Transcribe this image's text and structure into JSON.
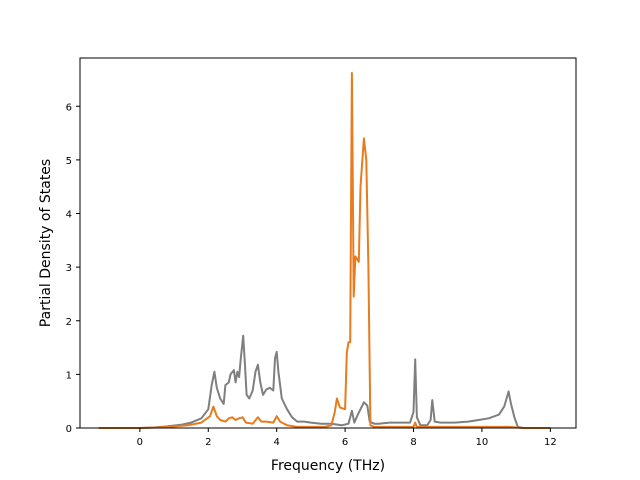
{
  "chart_data": {
    "type": "line",
    "xlabel": "Frequency (THz)",
    "ylabel": "Partial Density of States",
    "xlim": [
      -1.75,
      12.75
    ],
    "ylim": [
      0,
      6.9
    ],
    "x_ticks": [
      "0",
      "2",
      "4",
      "6",
      "8",
      "10",
      "12"
    ],
    "y_ticks": [
      "0",
      "1",
      "2",
      "3",
      "4",
      "5",
      "6"
    ],
    "grid": false,
    "legend": "none",
    "series": [
      {
        "color": "#7f7f7f",
        "points": [
          [
            -1.2,
            0
          ],
          [
            0,
            0
          ],
          [
            0.4,
            0.01
          ],
          [
            0.8,
            0.03
          ],
          [
            1.2,
            0.06
          ],
          [
            1.5,
            0.1
          ],
          [
            1.8,
            0.18
          ],
          [
            2.0,
            0.35
          ],
          [
            2.1,
            0.8
          ],
          [
            2.18,
            1.05
          ],
          [
            2.25,
            0.75
          ],
          [
            2.35,
            0.55
          ],
          [
            2.45,
            0.45
          ],
          [
            2.5,
            0.8
          ],
          [
            2.6,
            0.85
          ],
          [
            2.65,
            1.0
          ],
          [
            2.75,
            1.08
          ],
          [
            2.8,
            0.85
          ],
          [
            2.85,
            1.05
          ],
          [
            2.9,
            0.95
          ],
          [
            2.95,
            1.3
          ],
          [
            3.02,
            1.72
          ],
          [
            3.07,
            1.2
          ],
          [
            3.12,
            0.62
          ],
          [
            3.2,
            0.55
          ],
          [
            3.3,
            0.7
          ],
          [
            3.38,
            1.05
          ],
          [
            3.45,
            1.18
          ],
          [
            3.52,
            0.85
          ],
          [
            3.6,
            0.62
          ],
          [
            3.7,
            0.72
          ],
          [
            3.8,
            0.75
          ],
          [
            3.9,
            0.7
          ],
          [
            3.95,
            1.3
          ],
          [
            4.0,
            1.42
          ],
          [
            4.05,
            1.05
          ],
          [
            4.15,
            0.55
          ],
          [
            4.3,
            0.35
          ],
          [
            4.45,
            0.2
          ],
          [
            4.6,
            0.12
          ],
          [
            4.8,
            0.12
          ],
          [
            5.0,
            0.1
          ],
          [
            5.3,
            0.08
          ],
          [
            5.6,
            0.08
          ],
          [
            5.9,
            0.05
          ],
          [
            6.1,
            0.08
          ],
          [
            6.2,
            0.32
          ],
          [
            6.27,
            0.1
          ],
          [
            6.35,
            0.22
          ],
          [
            6.45,
            0.35
          ],
          [
            6.55,
            0.48
          ],
          [
            6.65,
            0.42
          ],
          [
            6.72,
            0.12
          ],
          [
            6.85,
            0.08
          ],
          [
            7.0,
            0.08
          ],
          [
            7.3,
            0.1
          ],
          [
            7.6,
            0.1
          ],
          [
            7.9,
            0.1
          ],
          [
            8.0,
            0.3
          ],
          [
            8.05,
            1.28
          ],
          [
            8.1,
            0.2
          ],
          [
            8.2,
            0.05
          ],
          [
            8.4,
            0.05
          ],
          [
            8.5,
            0.15
          ],
          [
            8.55,
            0.52
          ],
          [
            8.62,
            0.12
          ],
          [
            8.8,
            0.1
          ],
          [
            9.2,
            0.1
          ],
          [
            9.6,
            0.12
          ],
          [
            9.9,
            0.15
          ],
          [
            10.2,
            0.18
          ],
          [
            10.5,
            0.25
          ],
          [
            10.65,
            0.4
          ],
          [
            10.78,
            0.68
          ],
          [
            10.85,
            0.45
          ],
          [
            10.95,
            0.2
          ],
          [
            11.05,
            0.02
          ],
          [
            11.2,
            0
          ],
          [
            12.0,
            0
          ]
        ]
      },
      {
        "color": "#e87b1e",
        "points": [
          [
            -1.2,
            0
          ],
          [
            0,
            0
          ],
          [
            0.5,
            0.01
          ],
          [
            1.0,
            0.03
          ],
          [
            1.4,
            0.05
          ],
          [
            1.8,
            0.1
          ],
          [
            2.05,
            0.22
          ],
          [
            2.15,
            0.4
          ],
          [
            2.25,
            0.22
          ],
          [
            2.35,
            0.15
          ],
          [
            2.5,
            0.12
          ],
          [
            2.6,
            0.18
          ],
          [
            2.7,
            0.2
          ],
          [
            2.8,
            0.15
          ],
          [
            2.9,
            0.18
          ],
          [
            3.0,
            0.2
          ],
          [
            3.1,
            0.1
          ],
          [
            3.3,
            0.08
          ],
          [
            3.45,
            0.2
          ],
          [
            3.55,
            0.12
          ],
          [
            3.7,
            0.12
          ],
          [
            3.9,
            0.1
          ],
          [
            4.0,
            0.22
          ],
          [
            4.1,
            0.12
          ],
          [
            4.3,
            0.05
          ],
          [
            4.6,
            0.02
          ],
          [
            5.0,
            0.02
          ],
          [
            5.4,
            0.02
          ],
          [
            5.6,
            0.05
          ],
          [
            5.7,
            0.3
          ],
          [
            5.76,
            0.55
          ],
          [
            5.85,
            0.38
          ],
          [
            6.0,
            0.35
          ],
          [
            6.05,
            1.4
          ],
          [
            6.1,
            1.6
          ],
          [
            6.15,
            1.6
          ],
          [
            6.2,
            6.62
          ],
          [
            6.25,
            2.45
          ],
          [
            6.3,
            3.2
          ],
          [
            6.4,
            3.1
          ],
          [
            6.45,
            4.5
          ],
          [
            6.55,
            5.4
          ],
          [
            6.62,
            5.0
          ],
          [
            6.68,
            3.0
          ],
          [
            6.74,
            0.05
          ],
          [
            6.85,
            0.02
          ],
          [
            7.2,
            0.02
          ],
          [
            7.6,
            0.02
          ],
          [
            8.0,
            0.02
          ],
          [
            8.05,
            0.1
          ],
          [
            8.1,
            0.02
          ],
          [
            8.5,
            0.02
          ],
          [
            9.0,
            0.02
          ],
          [
            9.6,
            0.02
          ],
          [
            10.2,
            0.02
          ],
          [
            10.8,
            0.02
          ],
          [
            11.2,
            0
          ],
          [
            12.0,
            0
          ]
        ]
      }
    ]
  }
}
